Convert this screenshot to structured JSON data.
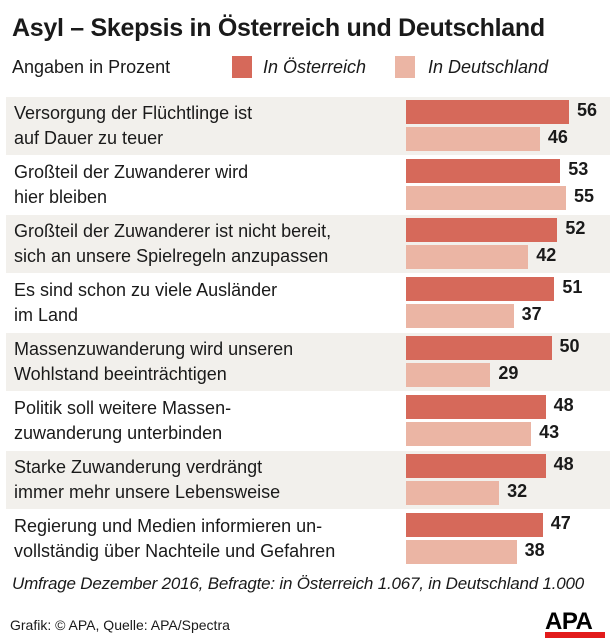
{
  "colors": {
    "austria": "#d6695a",
    "germany": "#ebb5a4",
    "row_shade": "#f2f0ec",
    "logo_red": "#e21b1b"
  },
  "header": {
    "title": "Asyl – Skepsis in Österreich und Deutschland",
    "subtitle": "Angaben in Prozent"
  },
  "footer": {
    "note": "Umfrage Dezember 2016, Befragte: in Österreich 1.067, in Deutschland 1.000",
    "credit": "Grafik: © APA, Quelle: APA/Spectra",
    "logo": "APA"
  },
  "chart_data": {
    "type": "bar",
    "orientation": "horizontal",
    "title": "Asyl – Skepsis in Österreich und Deutschland",
    "subtitle": "Angaben in Prozent",
    "xlabel": "",
    "ylabel": "",
    "xlim": [
      0,
      100
    ],
    "grid": false,
    "legend_position": "top",
    "categories": [
      "Versorgung der Flüchtlinge ist\nauf Dauer zu teuer",
      "Großteil der Zuwanderer wird\nhier bleiben",
      "Großteil der Zuwanderer ist nicht bereit,\nsich an unsere Spielregeln anzupassen",
      "Es sind schon zu viele Ausländer\nim Land",
      "Massenzuwanderung wird unseren\nWohlstand beeinträchtigen",
      "Politik soll weitere Massen-\nzuwanderung unterbinden",
      "Starke Zuwanderung verdrängt\nimmer mehr unsere Lebensweise",
      "Regierung und Medien informieren un-\nvollständig über Nachteile und Gefahren"
    ],
    "series": [
      {
        "name": "In Österreich",
        "values": [
          56,
          53,
          52,
          51,
          50,
          48,
          48,
          47
        ]
      },
      {
        "name": "In Deutschland",
        "values": [
          46,
          55,
          42,
          37,
          29,
          43,
          32,
          38
        ]
      }
    ]
  }
}
